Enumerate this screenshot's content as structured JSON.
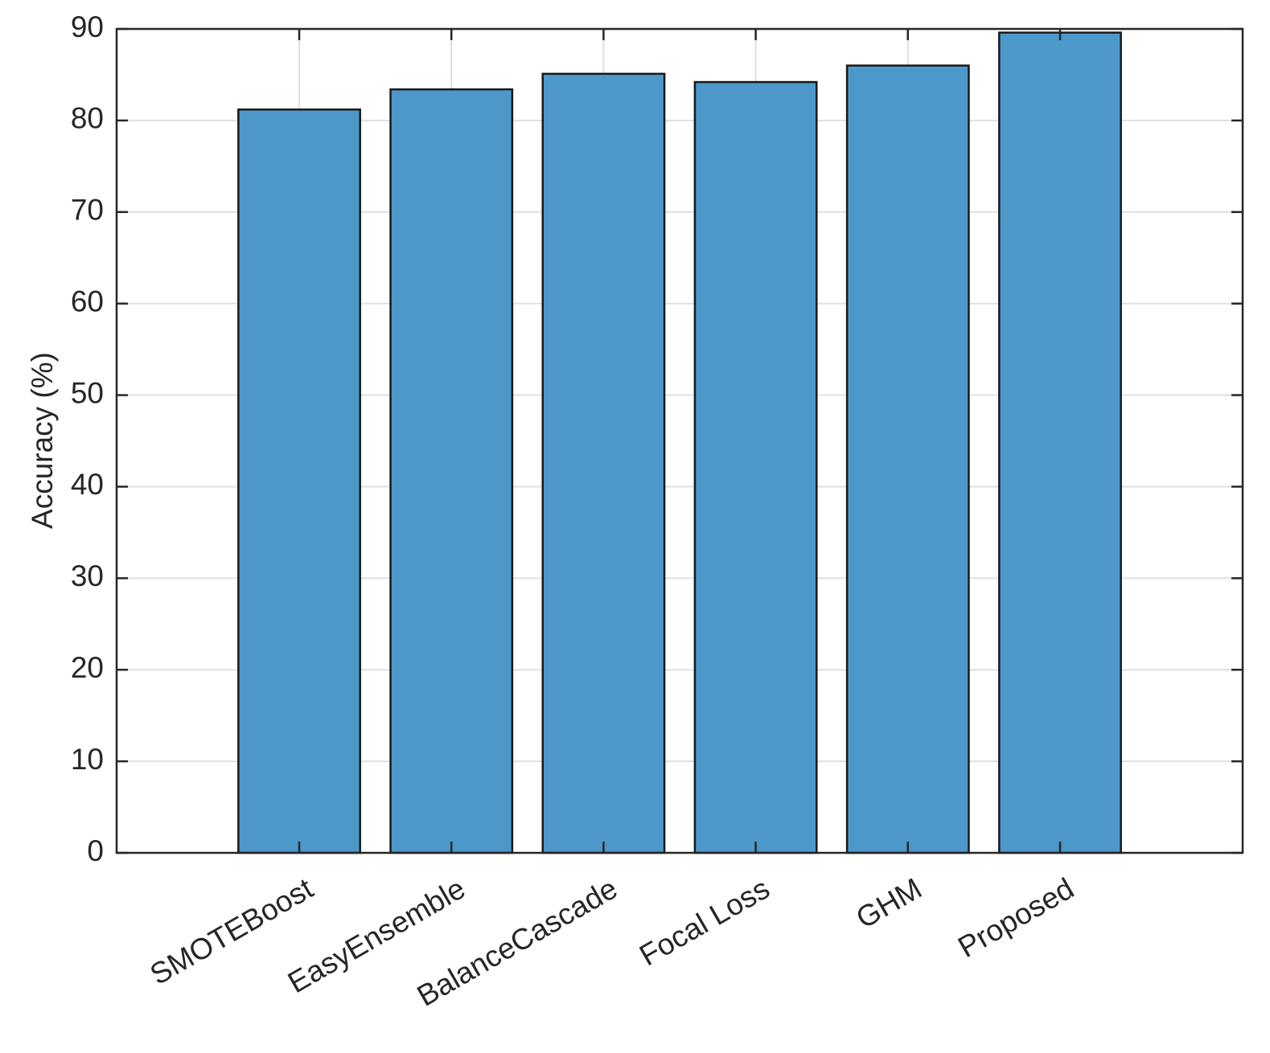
{
  "chart_data": {
    "type": "bar",
    "ylabel": "Accuracy (%)",
    "categories": [
      "SMOTEBoost",
      "EasyEnsemble",
      "BalanceCascade",
      "Focal Loss",
      "GHM",
      "Proposed"
    ],
    "values": [
      81.2,
      83.4,
      85.1,
      84.2,
      86.0,
      89.6
    ],
    "color": "#4d98ca",
    "ylim": [
      0,
      90
    ],
    "yticks": [
      0,
      10,
      20,
      30,
      40,
      50,
      60,
      70,
      80,
      90
    ],
    "grid": true
  }
}
